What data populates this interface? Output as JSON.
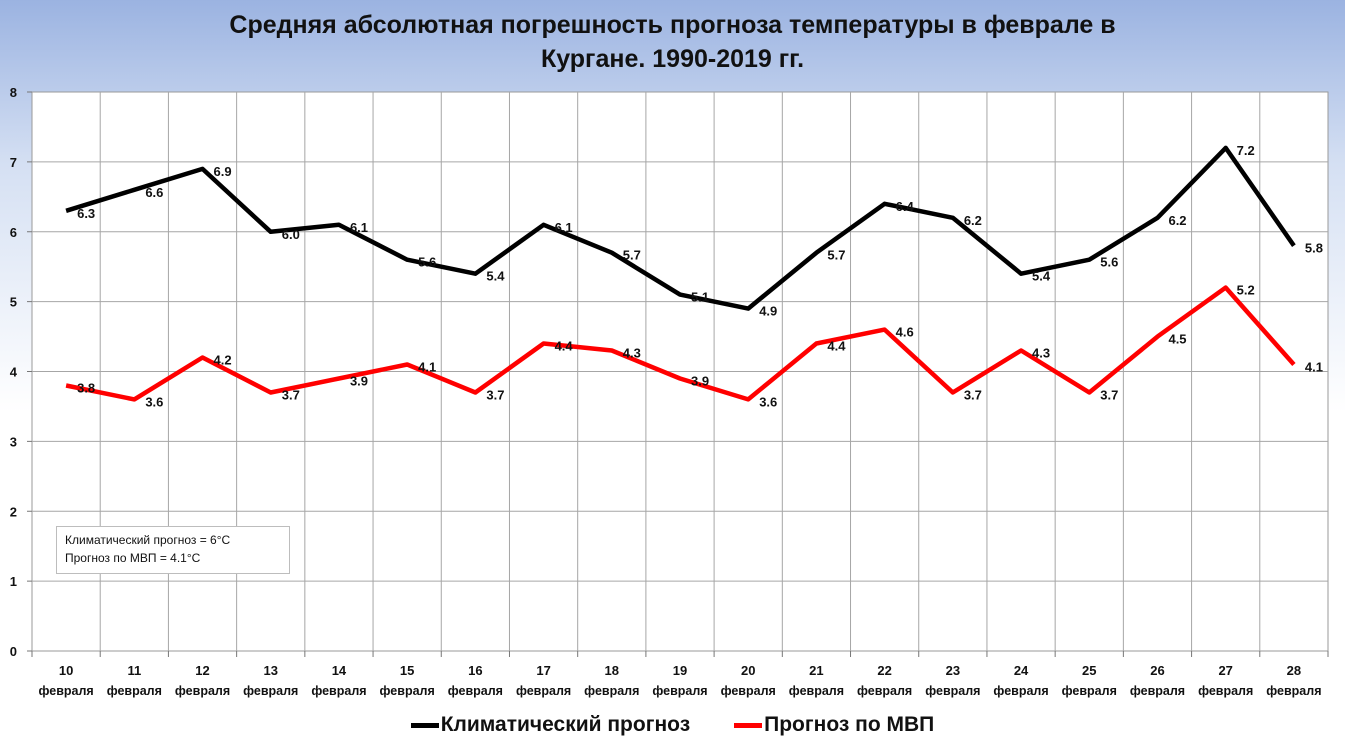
{
  "chart_data": {
    "type": "line",
    "title_line1": "Средняя абсолютная погрешность прогноза температуры в феврале в",
    "title_line2": "Кургане. 1990-2019 гг.",
    "categories": [
      {
        "day": "10",
        "month": "февраля"
      },
      {
        "day": "11",
        "month": "февраля"
      },
      {
        "day": "12",
        "month": "февраля"
      },
      {
        "day": "13",
        "month": "февраля"
      },
      {
        "day": "14",
        "month": "февраля"
      },
      {
        "day": "15",
        "month": "февраля"
      },
      {
        "day": "16",
        "month": "февраля"
      },
      {
        "day": "17",
        "month": "февраля"
      },
      {
        "day": "18",
        "month": "февраля"
      },
      {
        "day": "19",
        "month": "февраля"
      },
      {
        "day": "20",
        "month": "февраля"
      },
      {
        "day": "21",
        "month": "февраля"
      },
      {
        "day": "22",
        "month": "февраля"
      },
      {
        "day": "23",
        "month": "февраля"
      },
      {
        "day": "24",
        "month": "февраля"
      },
      {
        "day": "25",
        "month": "февраля"
      },
      {
        "day": "26",
        "month": "февраля"
      },
      {
        "day": "27",
        "month": "февраля"
      },
      {
        "day": "28",
        "month": "февраля"
      }
    ],
    "series": [
      {
        "name": "Климатический прогноз",
        "color": "#000000",
        "values": [
          6.3,
          6.6,
          6.9,
          6.0,
          6.1,
          5.6,
          5.4,
          6.1,
          5.7,
          5.1,
          4.9,
          5.7,
          6.4,
          6.2,
          5.4,
          5.6,
          6.2,
          7.2,
          5.8
        ],
        "labels": [
          "6.3",
          "6.6",
          "6.9",
          "6.0",
          "6.1",
          "5.6",
          "5.4",
          "6.1",
          "5.7",
          "5.1",
          "4.9",
          "5.7",
          "6.4",
          "6.2",
          "5.4",
          "5.6",
          "6.2",
          "7.2",
          "5.8"
        ]
      },
      {
        "name": "Прогноз по МВП",
        "color": "#ff0000",
        "values": [
          3.8,
          3.6,
          4.2,
          3.7,
          3.9,
          4.1,
          3.7,
          4.4,
          4.3,
          3.9,
          3.6,
          4.4,
          4.6,
          3.7,
          4.3,
          3.7,
          4.5,
          5.2,
          4.1
        ],
        "labels": [
          "3.8",
          "3.6",
          "4.2",
          "3.7",
          "3.9",
          "4.1",
          "3.7",
          "4.4",
          "4.3",
          "3.9",
          "3.6",
          "4.4",
          "4.6",
          "3.7",
          "4.3",
          "3.7",
          "4.5",
          "5.2",
          "4.1"
        ]
      }
    ],
    "yticks": [
      "0",
      "1",
      "2",
      "3",
      "4",
      "5",
      "6",
      "7",
      "8"
    ],
    "ylim": [
      0,
      8
    ],
    "grid": true,
    "legend_position": "bottom",
    "annotation": {
      "line1": "Климатический прогноз = 6°С",
      "line2": "Прогноз по МВП = 4.1°С"
    }
  }
}
